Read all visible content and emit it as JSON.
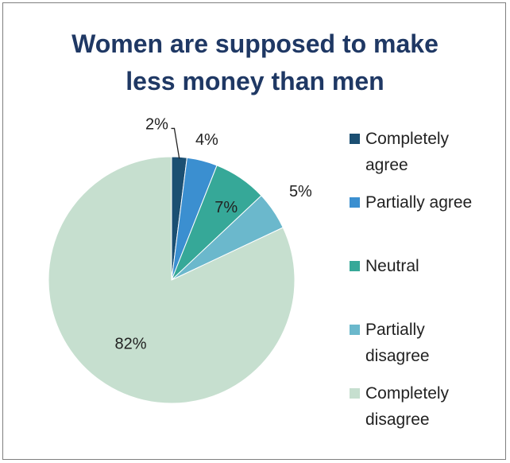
{
  "chart_data": {
    "type": "pie",
    "title_lines": [
      "Women are supposed to make",
      "less money than men"
    ],
    "categories": [
      "Completely agree",
      "Partially agree",
      "Neutral",
      "Partially disagree",
      "Completely disagree"
    ],
    "legend_lines": [
      [
        "Completely",
        "agree"
      ],
      [
        "Partially agree"
      ],
      [
        "Neutral"
      ],
      [
        "Partially",
        "disagree"
      ],
      [
        "Completely",
        "disagree"
      ]
    ],
    "values": [
      2,
      4,
      7,
      5,
      82
    ],
    "data_labels": [
      "2%",
      "4%",
      "7%",
      "5%",
      "82%"
    ],
    "colors": [
      "#1b4f72",
      "#3b8fd0",
      "#36a898",
      "#6bb8cc",
      "#c6dfcf"
    ],
    "legend_position": "right"
  }
}
